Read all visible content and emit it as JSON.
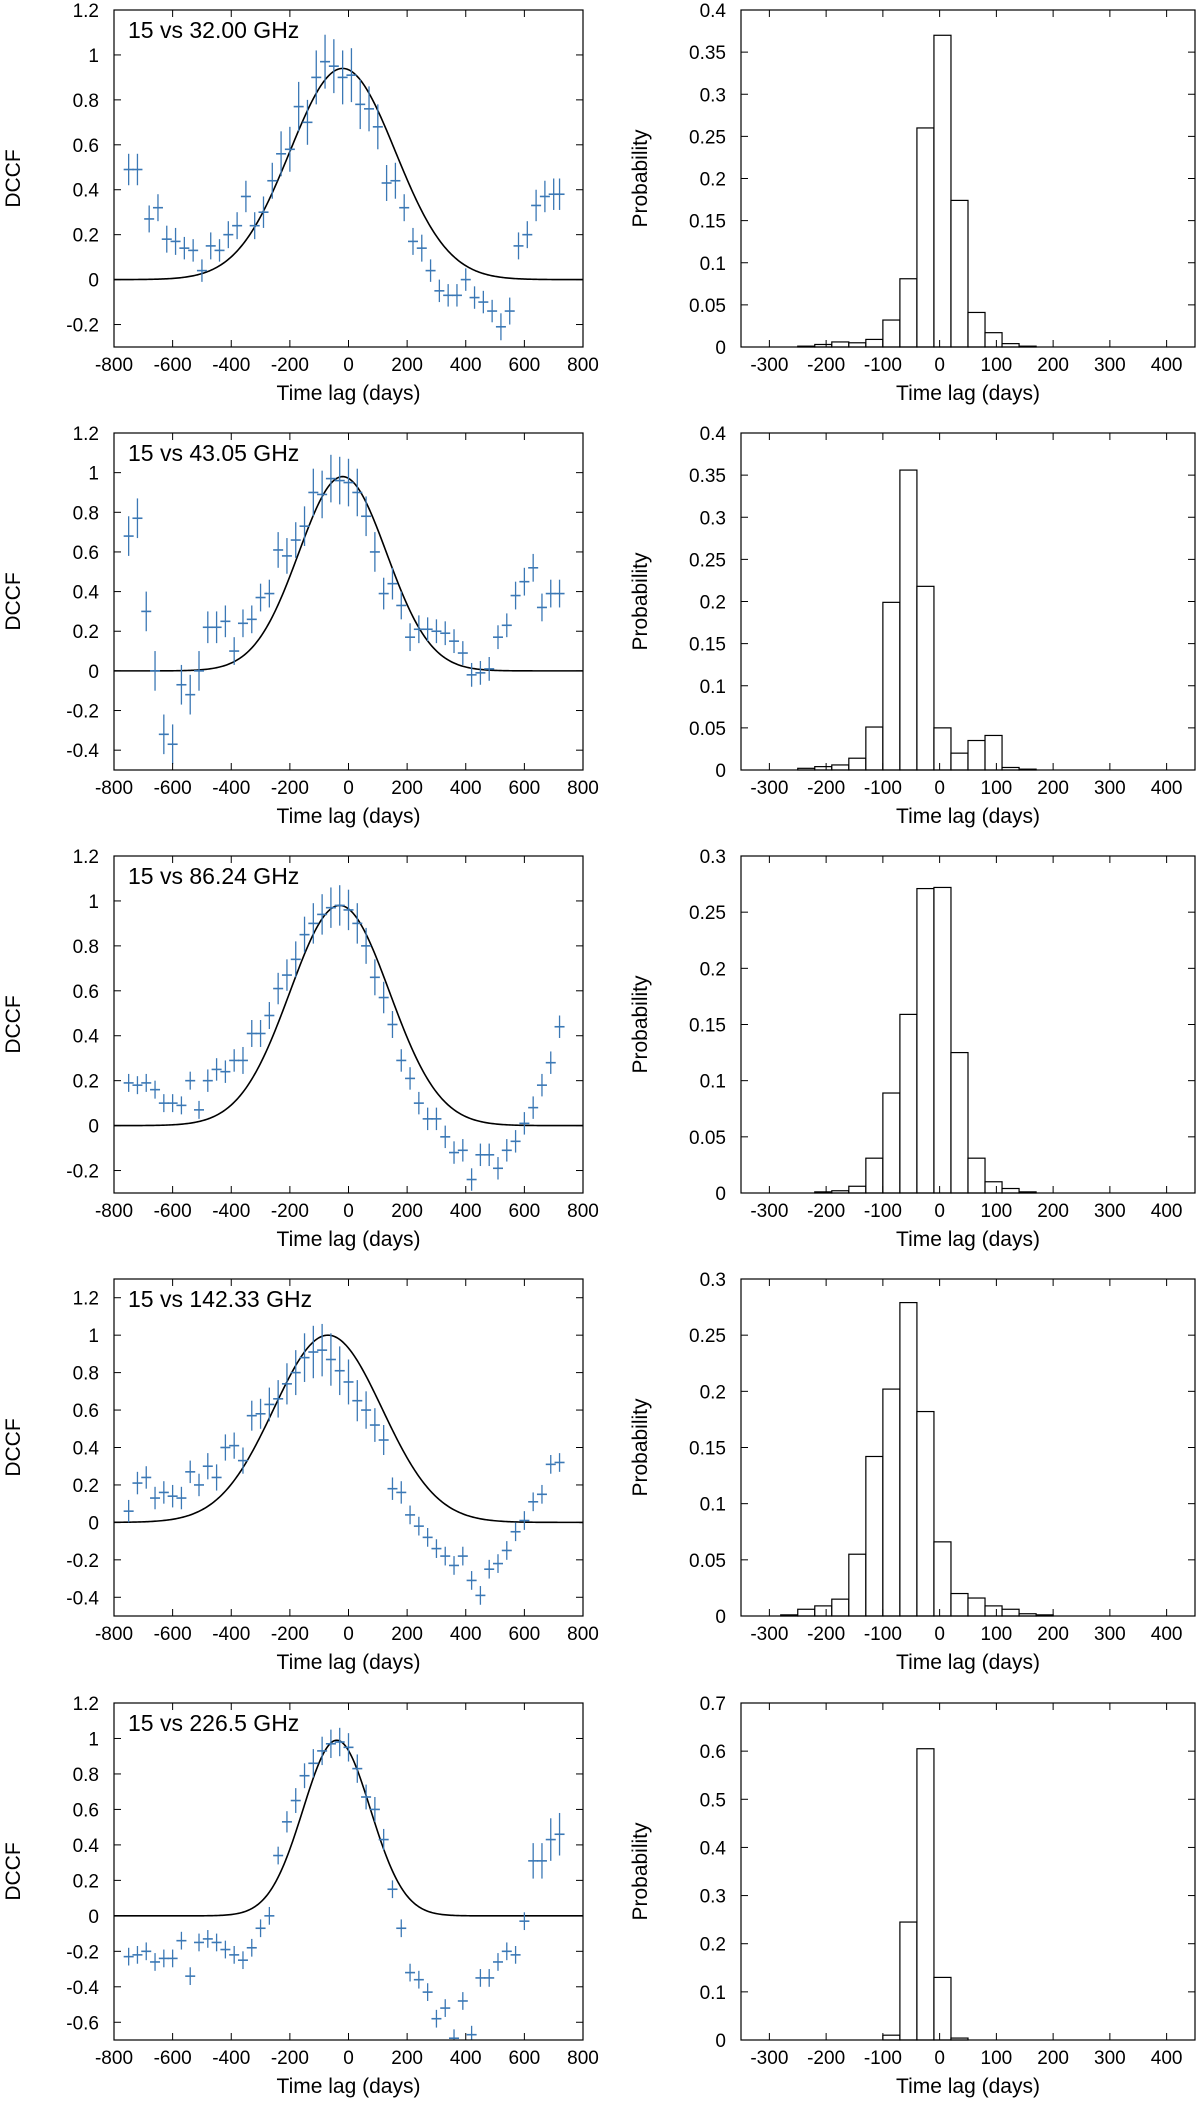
{
  "chart_data": [
    {
      "type": "line",
      "title": "15 vs 32.00 GHz",
      "xlabel": "Time lag (days)",
      "ylabel": "DCCF",
      "xlim": [
        -800,
        800
      ],
      "ylim": [
        -0.3,
        1.2
      ],
      "xticks": [
        -800,
        -600,
        -400,
        -200,
        0,
        200,
        400,
        600,
        800
      ],
      "yticks": [
        -0.2,
        0,
        0.2,
        0.4,
        0.6,
        0.8,
        1,
        1.2
      ],
      "fit": {
        "amplitude": 0.94,
        "center": -20,
        "sigma": 180
      },
      "points": {
        "x": [
          -750,
          -720,
          -680,
          -650,
          -620,
          -590,
          -560,
          -530,
          -500,
          -470,
          -440,
          -410,
          -380,
          -350,
          -320,
          -290,
          -260,
          -230,
          -200,
          -170,
          -140,
          -110,
          -80,
          -50,
          -20,
          10,
          40,
          70,
          100,
          130,
          160,
          190,
          220,
          250,
          280,
          310,
          340,
          370,
          400,
          430,
          460,
          490,
          520,
          550,
          580,
          610,
          640,
          670,
          700,
          720
        ],
        "y": [
          0.49,
          0.49,
          0.27,
          0.32,
          0.18,
          0.17,
          0.14,
          0.13,
          0.04,
          0.15,
          0.13,
          0.2,
          0.24,
          0.37,
          0.24,
          0.3,
          0.44,
          0.56,
          0.58,
          0.77,
          0.7,
          0.9,
          0.97,
          0.95,
          0.9,
          0.91,
          0.78,
          0.76,
          0.68,
          0.43,
          0.44,
          0.32,
          0.17,
          0.14,
          0.04,
          -0.05,
          -0.07,
          -0.07,
          0.0,
          -0.08,
          -0.1,
          -0.14,
          -0.21,
          -0.14,
          0.15,
          0.2,
          0.33,
          0.37,
          0.38,
          0.38
        ],
        "err": [
          0.07,
          0.07,
          0.06,
          0.06,
          0.06,
          0.06,
          0.05,
          0.05,
          0.05,
          0.06,
          0.05,
          0.06,
          0.06,
          0.07,
          0.06,
          0.07,
          0.08,
          0.1,
          0.1,
          0.11,
          0.1,
          0.12,
          0.12,
          0.12,
          0.12,
          0.12,
          0.11,
          0.1,
          0.1,
          0.08,
          0.08,
          0.06,
          0.06,
          0.06,
          0.05,
          0.05,
          0.05,
          0.05,
          0.05,
          0.05,
          0.05,
          0.05,
          0.06,
          0.06,
          0.06,
          0.06,
          0.07,
          0.07,
          0.07,
          0.07
        ]
      }
    },
    {
      "type": "bar",
      "xlabel": "Time lag (days)",
      "ylabel": "Probability",
      "xlim": [
        -350,
        450
      ],
      "ylim": [
        0,
        0.4
      ],
      "xticks": [
        -300,
        -200,
        -100,
        0,
        100,
        200,
        300,
        400
      ],
      "yticks": [
        0,
        0.05,
        0.1,
        0.15,
        0.2,
        0.25,
        0.3,
        0.35,
        0.4
      ],
      "bin_width": 30,
      "bins_start": [
        -250,
        -220,
        -190,
        -160,
        -130,
        -100,
        -70,
        -40,
        -10,
        20,
        50,
        80,
        110,
        140
      ],
      "values": [
        0.001,
        0.003,
        0.006,
        0.005,
        0.009,
        0.032,
        0.081,
        0.26,
        0.37,
        0.174,
        0.041,
        0.017,
        0.004,
        0.001
      ]
    },
    {
      "type": "line",
      "title": "15 vs 43.05 GHz",
      "xlabel": "Time lag (days)",
      "ylabel": "DCCF",
      "xlim": [
        -800,
        800
      ],
      "ylim": [
        -0.5,
        1.2
      ],
      "xticks": [
        -800,
        -600,
        -400,
        -200,
        0,
        200,
        400,
        600,
        800
      ],
      "yticks": [
        -0.4,
        -0.2,
        0,
        0.2,
        0.4,
        0.6,
        0.8,
        1,
        1.2
      ],
      "fit": {
        "amplitude": 0.98,
        "center": -20,
        "sigma": 150
      },
      "points": {
        "x": [
          -750,
          -720,
          -690,
          -660,
          -630,
          -600,
          -570,
          -540,
          -510,
          -480,
          -450,
          -420,
          -390,
          -360,
          -330,
          -300,
          -270,
          -240,
          -210,
          -180,
          -150,
          -120,
          -90,
          -60,
          -30,
          0,
          30,
          60,
          90,
          120,
          150,
          180,
          210,
          240,
          270,
          300,
          330,
          360,
          390,
          420,
          450,
          480,
          510,
          540,
          570,
          600,
          630,
          660,
          690,
          720
        ],
        "y": [
          0.68,
          0.77,
          0.3,
          0.0,
          -0.32,
          -0.37,
          -0.07,
          -0.12,
          0.0,
          0.22,
          0.22,
          0.25,
          0.1,
          0.24,
          0.26,
          0.37,
          0.39,
          0.61,
          0.58,
          0.66,
          0.73,
          0.9,
          0.89,
          0.97,
          0.96,
          0.95,
          0.9,
          0.78,
          0.6,
          0.39,
          0.44,
          0.33,
          0.17,
          0.21,
          0.21,
          0.2,
          0.19,
          0.15,
          0.09,
          -0.02,
          -0.01,
          0.01,
          0.17,
          0.23,
          0.38,
          0.45,
          0.52,
          0.32,
          0.39,
          0.39
        ],
        "err": [
          0.1,
          0.1,
          0.1,
          0.1,
          0.1,
          0.1,
          0.1,
          0.1,
          0.1,
          0.08,
          0.08,
          0.08,
          0.07,
          0.07,
          0.07,
          0.07,
          0.07,
          0.09,
          0.09,
          0.09,
          0.1,
          0.12,
          0.12,
          0.12,
          0.12,
          0.12,
          0.12,
          0.1,
          0.1,
          0.08,
          0.08,
          0.07,
          0.07,
          0.07,
          0.06,
          0.06,
          0.06,
          0.06,
          0.06,
          0.06,
          0.06,
          0.06,
          0.06,
          0.06,
          0.07,
          0.07,
          0.07,
          0.07,
          0.07,
          0.07
        ]
      }
    },
    {
      "type": "bar",
      "xlabel": "Time lag (days)",
      "ylabel": "Probability",
      "xlim": [
        -350,
        450
      ],
      "ylim": [
        0,
        0.4
      ],
      "xticks": [
        -300,
        -200,
        -100,
        0,
        100,
        200,
        300,
        400
      ],
      "yticks": [
        0,
        0.05,
        0.1,
        0.15,
        0.2,
        0.25,
        0.3,
        0.35,
        0.4
      ],
      "bin_width": 30,
      "bins_start": [
        -250,
        -220,
        -190,
        -160,
        -130,
        -100,
        -70,
        -40,
        -10,
        20,
        50,
        80,
        110,
        140
      ],
      "values": [
        0.002,
        0.004,
        0.006,
        0.014,
        0.051,
        0.199,
        0.356,
        0.218,
        0.05,
        0.02,
        0.035,
        0.041,
        0.003,
        0.001
      ]
    },
    {
      "type": "line",
      "title": "15 vs 86.24 GHz",
      "xlabel": "Time lag (days)",
      "ylabel": "DCCF",
      "xlim": [
        -800,
        800
      ],
      "ylim": [
        -0.3,
        1.2
      ],
      "xticks": [
        -800,
        -600,
        -400,
        -200,
        0,
        200,
        400,
        600,
        800
      ],
      "yticks": [
        -0.2,
        0,
        0.2,
        0.4,
        0.6,
        0.8,
        1,
        1.2
      ],
      "fit": {
        "amplitude": 0.98,
        "center": -30,
        "sigma": 170
      },
      "points": {
        "x": [
          -750,
          -720,
          -690,
          -660,
          -630,
          -600,
          -570,
          -540,
          -510,
          -480,
          -450,
          -420,
          -390,
          -360,
          -330,
          -300,
          -270,
          -240,
          -210,
          -180,
          -150,
          -120,
          -90,
          -60,
          -30,
          0,
          30,
          60,
          90,
          120,
          150,
          180,
          210,
          240,
          270,
          300,
          330,
          360,
          390,
          420,
          450,
          480,
          510,
          540,
          570,
          600,
          630,
          660,
          690,
          720
        ],
        "y": [
          0.19,
          0.18,
          0.19,
          0.16,
          0.1,
          0.1,
          0.09,
          0.2,
          0.07,
          0.2,
          0.25,
          0.24,
          0.29,
          0.29,
          0.41,
          0.41,
          0.49,
          0.61,
          0.67,
          0.74,
          0.85,
          0.9,
          0.94,
          0.97,
          0.98,
          0.96,
          0.9,
          0.8,
          0.66,
          0.57,
          0.45,
          0.29,
          0.21,
          0.1,
          0.03,
          0.03,
          -0.05,
          -0.12,
          -0.11,
          -0.24,
          -0.13,
          -0.13,
          -0.19,
          -0.11,
          -0.07,
          0.01,
          0.08,
          0.18,
          0.28,
          0.44
        ],
        "err": [
          0.04,
          0.04,
          0.04,
          0.04,
          0.04,
          0.04,
          0.04,
          0.04,
          0.04,
          0.05,
          0.05,
          0.05,
          0.05,
          0.06,
          0.06,
          0.06,
          0.06,
          0.07,
          0.07,
          0.08,
          0.08,
          0.09,
          0.09,
          0.09,
          0.09,
          0.09,
          0.09,
          0.08,
          0.08,
          0.07,
          0.06,
          0.05,
          0.05,
          0.05,
          0.05,
          0.05,
          0.05,
          0.05,
          0.05,
          0.05,
          0.05,
          0.05,
          0.05,
          0.05,
          0.05,
          0.05,
          0.05,
          0.05,
          0.05,
          0.05
        ]
      }
    },
    {
      "type": "bar",
      "xlabel": "Time lag (days)",
      "ylabel": "Probability",
      "xlim": [
        -350,
        450
      ],
      "ylim": [
        0,
        0.3
      ],
      "xticks": [
        -300,
        -200,
        -100,
        0,
        100,
        200,
        300,
        400
      ],
      "yticks": [
        0,
        0.05,
        0.1,
        0.15,
        0.2,
        0.25,
        0.3
      ],
      "bin_width": 30,
      "bins_start": [
        -220,
        -190,
        -160,
        -130,
        -100,
        -70,
        -40,
        -10,
        20,
        50,
        80,
        110,
        140
      ],
      "values": [
        0.001,
        0.002,
        0.006,
        0.031,
        0.089,
        0.159,
        0.271,
        0.272,
        0.125,
        0.031,
        0.01,
        0.004,
        0.001
      ]
    },
    {
      "type": "line",
      "title": "15 vs 142.33 GHz",
      "xlabel": "Time lag (days)",
      "ylabel": "DCCF",
      "xlim": [
        -800,
        800
      ],
      "ylim": [
        -0.5,
        1.3
      ],
      "xticks": [
        -800,
        -600,
        -400,
        -200,
        0,
        200,
        400,
        600,
        800
      ],
      "yticks": [
        -0.4,
        -0.2,
        0,
        0.2,
        0.4,
        0.6,
        0.8,
        1,
        1.2
      ],
      "fit": {
        "amplitude": 1.0,
        "center": -70,
        "sigma": 185
      },
      "points": {
        "x": [
          -750,
          -720,
          -690,
          -660,
          -630,
          -600,
          -570,
          -540,
          -510,
          -480,
          -450,
          -420,
          -390,
          -360,
          -330,
          -300,
          -270,
          -240,
          -210,
          -180,
          -150,
          -120,
          -90,
          -60,
          -30,
          0,
          30,
          60,
          90,
          120,
          150,
          180,
          210,
          240,
          270,
          300,
          330,
          360,
          390,
          420,
          450,
          480,
          510,
          540,
          570,
          600,
          630,
          660,
          690,
          720
        ],
        "y": [
          0.06,
          0.21,
          0.24,
          0.13,
          0.16,
          0.14,
          0.13,
          0.27,
          0.2,
          0.3,
          0.24,
          0.4,
          0.41,
          0.33,
          0.57,
          0.58,
          0.63,
          0.66,
          0.74,
          0.8,
          0.88,
          0.91,
          0.92,
          0.87,
          0.81,
          0.75,
          0.65,
          0.6,
          0.52,
          0.44,
          0.18,
          0.16,
          0.04,
          -0.02,
          -0.08,
          -0.14,
          -0.18,
          -0.23,
          -0.18,
          -0.31,
          -0.39,
          -0.25,
          -0.22,
          -0.15,
          -0.05,
          0.01,
          0.11,
          0.15,
          0.31,
          0.32
        ],
        "err": [
          0.06,
          0.06,
          0.06,
          0.06,
          0.06,
          0.06,
          0.06,
          0.06,
          0.06,
          0.07,
          0.07,
          0.07,
          0.07,
          0.07,
          0.08,
          0.08,
          0.09,
          0.1,
          0.11,
          0.12,
          0.13,
          0.14,
          0.14,
          0.14,
          0.13,
          0.12,
          0.11,
          0.1,
          0.09,
          0.08,
          0.06,
          0.06,
          0.05,
          0.05,
          0.05,
          0.05,
          0.05,
          0.05,
          0.05,
          0.05,
          0.05,
          0.05,
          0.05,
          0.05,
          0.05,
          0.05,
          0.05,
          0.05,
          0.05,
          0.05
        ]
      }
    },
    {
      "type": "bar",
      "xlabel": "Time lag (days)",
      "ylabel": "Probability",
      "xlim": [
        -350,
        450
      ],
      "ylim": [
        0,
        0.3
      ],
      "xticks": [
        -300,
        -200,
        -100,
        0,
        100,
        200,
        300,
        400
      ],
      "yticks": [
        0,
        0.05,
        0.1,
        0.15,
        0.2,
        0.25,
        0.3
      ],
      "bin_width": 30,
      "bins_start": [
        -280,
        -250,
        -220,
        -190,
        -160,
        -130,
        -100,
        -70,
        -40,
        -10,
        20,
        50,
        80,
        110,
        140,
        170
      ],
      "values": [
        0.001,
        0.006,
        0.009,
        0.015,
        0.055,
        0.142,
        0.202,
        0.279,
        0.182,
        0.066,
        0.02,
        0.016,
        0.009,
        0.006,
        0.002,
        0.001
      ]
    },
    {
      "type": "line",
      "title": "15 vs 226.5 GHz",
      "xlabel": "Time lag (days)",
      "ylabel": "DCCF",
      "xlim": [
        -800,
        800
      ],
      "ylim": [
        -0.7,
        1.2
      ],
      "xticks": [
        -800,
        -600,
        -400,
        -200,
        0,
        200,
        400,
        600,
        800
      ],
      "yticks": [
        -0.6,
        -0.4,
        -0.2,
        0,
        0.2,
        0.4,
        0.6,
        0.8,
        1,
        1.2
      ],
      "fit": {
        "amplitude": 0.99,
        "center": -40,
        "sigma": 115
      },
      "points": {
        "x": [
          -750,
          -720,
          -690,
          -660,
          -630,
          -600,
          -570,
          -540,
          -510,
          -480,
          -450,
          -420,
          -390,
          -360,
          -330,
          -300,
          -270,
          -240,
          -210,
          -180,
          -150,
          -120,
          -90,
          -60,
          -30,
          0,
          30,
          60,
          90,
          120,
          150,
          180,
          210,
          240,
          270,
          300,
          330,
          360,
          390,
          420,
          450,
          480,
          510,
          540,
          570,
          600,
          630,
          660,
          690,
          720
        ],
        "y": [
          -0.23,
          -0.22,
          -0.2,
          -0.26,
          -0.24,
          -0.24,
          -0.14,
          -0.34,
          -0.15,
          -0.13,
          -0.15,
          -0.19,
          -0.22,
          -0.25,
          -0.18,
          -0.07,
          0.0,
          0.34,
          0.53,
          0.65,
          0.79,
          0.86,
          0.93,
          0.97,
          0.98,
          0.95,
          0.83,
          0.67,
          0.6,
          0.43,
          0.15,
          -0.07,
          -0.32,
          -0.36,
          -0.43,
          -0.58,
          -0.52,
          -0.69,
          -0.48,
          -0.67,
          -0.35,
          -0.35,
          -0.26,
          -0.2,
          -0.22,
          -0.03,
          0.31,
          0.31,
          0.43,
          0.46
        ],
        "err": [
          0.05,
          0.05,
          0.05,
          0.05,
          0.05,
          0.05,
          0.05,
          0.05,
          0.05,
          0.05,
          0.05,
          0.05,
          0.05,
          0.05,
          0.05,
          0.05,
          0.05,
          0.05,
          0.06,
          0.07,
          0.07,
          0.08,
          0.08,
          0.08,
          0.08,
          0.08,
          0.08,
          0.07,
          0.07,
          0.06,
          0.05,
          0.05,
          0.05,
          0.05,
          0.05,
          0.05,
          0.05,
          0.05,
          0.05,
          0.05,
          0.05,
          0.05,
          0.05,
          0.05,
          0.05,
          0.05,
          0.1,
          0.1,
          0.12,
          0.12
        ]
      }
    },
    {
      "type": "bar",
      "xlabel": "Time lag (days)",
      "ylabel": "Probability",
      "xlim": [
        -350,
        450
      ],
      "ylim": [
        0,
        0.7
      ],
      "xticks": [
        -300,
        -200,
        -100,
        0,
        100,
        200,
        300,
        400
      ],
      "yticks": [
        0,
        0.1,
        0.2,
        0.3,
        0.4,
        0.5,
        0.6,
        0.7
      ],
      "bin_width": 30,
      "bins_start": [
        -100,
        -70,
        -40,
        -10,
        20
      ],
      "values": [
        0.01,
        0.245,
        0.605,
        0.13,
        0.004
      ]
    }
  ],
  "colors": {
    "points": "#3b78b5",
    "fit_line": "#000000",
    "bar_fill": "#ffffff",
    "bar_stroke": "#000000"
  }
}
